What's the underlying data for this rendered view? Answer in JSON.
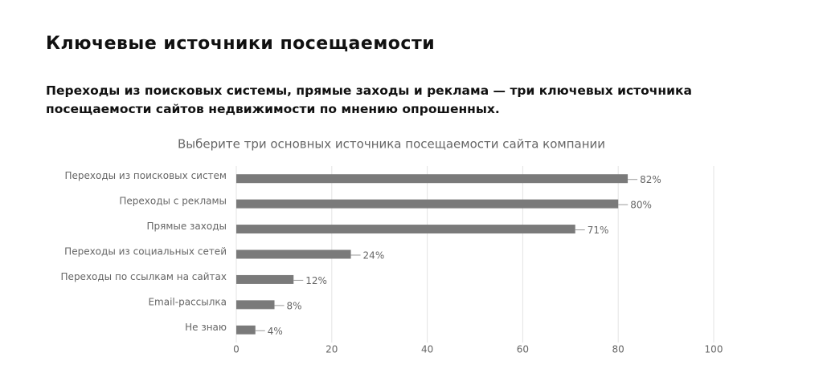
{
  "header": {
    "title": "Ключевые источники посещаемости",
    "subtitle": "Переходы из поисковых системы, прямые заходы и реклама — три ключевых источника посещаемости сайтов недвижимости по мнению опрошенных."
  },
  "chart_data": {
    "type": "bar",
    "orientation": "horizontal",
    "title": "Выберите три основных источника посещаемости сайта компании",
    "categories": [
      "Переходы из поисковых систем",
      "Переходы с рекламы",
      "Прямые заходы",
      "Переходы из социальных сетей",
      "Переходы по ссылкам на сайтах",
      "Email-рассылка",
      "Не знаю"
    ],
    "values": [
      82,
      80,
      71,
      24,
      12,
      8,
      4
    ],
    "value_labels": [
      "82%",
      "80%",
      "71%",
      "24%",
      "12%",
      "8%",
      "4%"
    ],
    "color": "#7a7a7a",
    "xlim": [
      0,
      100
    ],
    "xticks": [
      0,
      20,
      40,
      60,
      80,
      100
    ],
    "grid": true
  }
}
